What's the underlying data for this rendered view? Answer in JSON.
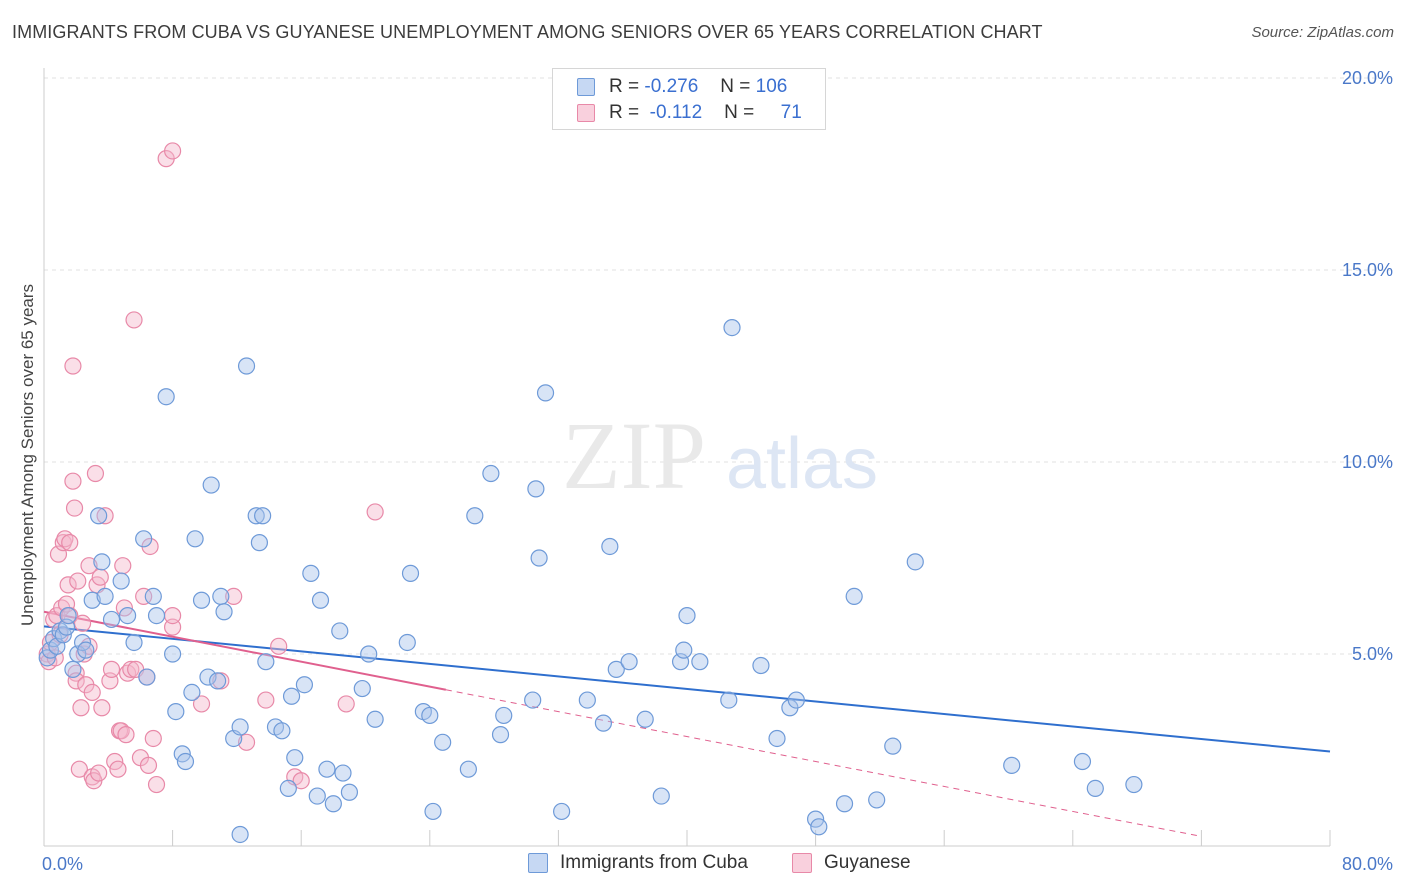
{
  "header": {
    "title": "IMMIGRANTS FROM CUBA VS GUYANESE UNEMPLOYMENT AMONG SENIORS OVER 65 YEARS CORRELATION CHART",
    "source": "Source: ZipAtlas.com"
  },
  "watermark": {
    "zip": "ZIP",
    "atlas": "atlas"
  },
  "legend": {
    "cuba": {
      "r_label": "R =",
      "r_value": "-0.276",
      "n_label": "N =",
      "n_value": "106"
    },
    "guyanese": {
      "r_label": "R =",
      "r_value": "-0.112",
      "n_label": "N =",
      "n_value": "71"
    }
  },
  "colors": {
    "cuba_fill": "#a8c4ec",
    "cuba_stroke": "#6e9ad8",
    "cuba_line": "#2f6fce",
    "guyanese_fill": "#f5b8cc",
    "guyanese_stroke": "#e889a8",
    "guyanese_line": "#e0608e",
    "grid": "#e2e2e2",
    "tick_text": "#4a78c8"
  },
  "chart_data": {
    "type": "scatter",
    "title": "IMMIGRANTS FROM CUBA VS GUYANESE UNEMPLOYMENT AMONG SENIORS OVER 65 YEARS CORRELATION CHART",
    "xlabel": "",
    "ylabel": "Unemployment Among Seniors over 65 years",
    "xlim": [
      0,
      80
    ],
    "ylim": [
      0,
      20
    ],
    "x_tick_labels": [
      "0.0%",
      "80.0%"
    ],
    "y_ticks": [
      5,
      10,
      15,
      20
    ],
    "y_tick_labels": [
      "5.0%",
      "10.0%",
      "15.0%",
      "20.0%"
    ],
    "legend_position": "top-center",
    "series": [
      {
        "name": "Immigrants from Cuba",
        "r": -0.276,
        "n": 106,
        "trend": {
          "x": [
            0,
            80
          ],
          "y": [
            5.72,
            2.46
          ],
          "solid_until": 80
        },
        "points": [
          [
            0.2,
            4.9
          ],
          [
            0.4,
            5.1
          ],
          [
            0.6,
            5.4
          ],
          [
            0.8,
            5.2
          ],
          [
            1.0,
            5.6
          ],
          [
            1.2,
            5.5
          ],
          [
            1.4,
            5.7
          ],
          [
            1.5,
            6.0
          ],
          [
            1.8,
            4.6
          ],
          [
            2.1,
            5.0
          ],
          [
            2.4,
            5.3
          ],
          [
            2.6,
            5.1
          ],
          [
            3.0,
            6.4
          ],
          [
            3.4,
            8.6
          ],
          [
            3.6,
            7.4
          ],
          [
            3.8,
            6.5
          ],
          [
            4.2,
            5.9
          ],
          [
            4.8,
            6.9
          ],
          [
            5.2,
            6.0
          ],
          [
            5.6,
            5.3
          ],
          [
            6.2,
            8.0
          ],
          [
            6.4,
            4.4
          ],
          [
            6.8,
            6.5
          ],
          [
            7.0,
            6.0
          ],
          [
            7.6,
            11.7
          ],
          [
            8.0,
            5.0
          ],
          [
            8.2,
            3.5
          ],
          [
            8.6,
            2.4
          ],
          [
            8.8,
            2.2
          ],
          [
            9.2,
            4.0
          ],
          [
            9.4,
            8.0
          ],
          [
            9.8,
            6.4
          ],
          [
            10.2,
            4.4
          ],
          [
            10.4,
            9.4
          ],
          [
            10.8,
            4.3
          ],
          [
            11.0,
            6.5
          ],
          [
            11.2,
            6.1
          ],
          [
            11.8,
            2.8
          ],
          [
            12.2,
            3.1
          ],
          [
            12.2,
            0.3
          ],
          [
            12.6,
            12.5
          ],
          [
            13.2,
            8.6
          ],
          [
            13.4,
            7.9
          ],
          [
            13.6,
            8.6
          ],
          [
            13.8,
            4.8
          ],
          [
            14.4,
            3.1
          ],
          [
            14.8,
            3.0
          ],
          [
            15.2,
            1.5
          ],
          [
            15.4,
            3.9
          ],
          [
            15.6,
            2.3
          ],
          [
            16.2,
            4.2
          ],
          [
            16.6,
            7.1
          ],
          [
            17.0,
            1.3
          ],
          [
            17.2,
            6.4
          ],
          [
            17.6,
            2.0
          ],
          [
            18.0,
            1.1
          ],
          [
            18.4,
            5.6
          ],
          [
            18.6,
            1.9
          ],
          [
            19.0,
            1.4
          ],
          [
            19.8,
            4.1
          ],
          [
            20.2,
            5.0
          ],
          [
            20.6,
            3.3
          ],
          [
            22.6,
            5.3
          ],
          [
            22.8,
            7.1
          ],
          [
            23.6,
            3.5
          ],
          [
            24.0,
            3.4
          ],
          [
            24.2,
            0.9
          ],
          [
            24.8,
            2.7
          ],
          [
            26.4,
            2.0
          ],
          [
            26.8,
            8.6
          ],
          [
            27.8,
            9.7
          ],
          [
            28.4,
            2.9
          ],
          [
            28.6,
            3.4
          ],
          [
            30.4,
            3.8
          ],
          [
            30.6,
            9.3
          ],
          [
            30.8,
            7.5
          ],
          [
            31.2,
            11.8
          ],
          [
            32.2,
            0.9
          ],
          [
            33.8,
            3.8
          ],
          [
            34.8,
            3.2
          ],
          [
            35.2,
            7.8
          ],
          [
            35.6,
            4.6
          ],
          [
            36.4,
            4.8
          ],
          [
            37.4,
            3.3
          ],
          [
            38.4,
            1.3
          ],
          [
            39.6,
            4.8
          ],
          [
            39.8,
            5.1
          ],
          [
            40.0,
            6.0
          ],
          [
            40.8,
            4.8
          ],
          [
            42.6,
            3.8
          ],
          [
            42.8,
            13.5
          ],
          [
            44.6,
            4.7
          ],
          [
            45.6,
            2.8
          ],
          [
            46.4,
            3.6
          ],
          [
            46.8,
            3.8
          ],
          [
            48.0,
            0.7
          ],
          [
            48.2,
            0.5
          ],
          [
            49.8,
            1.1
          ],
          [
            50.4,
            6.5
          ],
          [
            51.8,
            1.2
          ],
          [
            52.8,
            2.6
          ],
          [
            54.2,
            7.4
          ],
          [
            60.2,
            2.1
          ],
          [
            64.6,
            2.2
          ],
          [
            65.4,
            1.5
          ],
          [
            67.8,
            1.6
          ]
        ]
      },
      {
        "name": "Guyanese",
        "r": -0.112,
        "n": 71,
        "trend": {
          "x": [
            0,
            80
          ],
          "y": [
            6.1,
            -0.4
          ],
          "solid_until": 25
        },
        "points": [
          [
            0.2,
            5.0
          ],
          [
            0.3,
            4.8
          ],
          [
            0.4,
            5.3
          ],
          [
            0.6,
            5.9
          ],
          [
            0.7,
            4.9
          ],
          [
            0.8,
            6.0
          ],
          [
            0.9,
            7.6
          ],
          [
            1.0,
            5.5
          ],
          [
            1.1,
            6.2
          ],
          [
            1.2,
            7.9
          ],
          [
            1.3,
            8.0
          ],
          [
            1.4,
            6.3
          ],
          [
            1.5,
            6.8
          ],
          [
            1.6,
            6.0
          ],
          [
            1.6,
            7.9
          ],
          [
            1.8,
            9.5
          ],
          [
            1.8,
            12.5
          ],
          [
            1.9,
            8.8
          ],
          [
            2.0,
            4.5
          ],
          [
            2.0,
            4.3
          ],
          [
            2.1,
            6.9
          ],
          [
            2.2,
            2.0
          ],
          [
            2.3,
            3.6
          ],
          [
            2.4,
            5.8
          ],
          [
            2.5,
            5.0
          ],
          [
            2.6,
            4.2
          ],
          [
            2.8,
            5.2
          ],
          [
            2.8,
            7.3
          ],
          [
            3.0,
            4.0
          ],
          [
            3.0,
            1.8
          ],
          [
            3.1,
            1.7
          ],
          [
            3.2,
            9.7
          ],
          [
            3.3,
            6.8
          ],
          [
            3.4,
            1.9
          ],
          [
            3.5,
            7.0
          ],
          [
            3.6,
            3.6
          ],
          [
            3.8,
            8.6
          ],
          [
            4.1,
            4.3
          ],
          [
            4.2,
            4.6
          ],
          [
            4.4,
            2.2
          ],
          [
            4.6,
            2.0
          ],
          [
            4.7,
            3.0
          ],
          [
            4.8,
            3.0
          ],
          [
            4.9,
            7.3
          ],
          [
            5.0,
            6.2
          ],
          [
            5.1,
            2.9
          ],
          [
            5.2,
            4.5
          ],
          [
            5.4,
            4.6
          ],
          [
            5.6,
            13.7
          ],
          [
            5.7,
            4.6
          ],
          [
            6.0,
            2.3
          ],
          [
            6.2,
            6.5
          ],
          [
            6.4,
            4.4
          ],
          [
            6.5,
            2.1
          ],
          [
            6.6,
            7.8
          ],
          [
            6.8,
            2.8
          ],
          [
            7.0,
            1.6
          ],
          [
            7.6,
            17.9
          ],
          [
            8.0,
            18.1
          ],
          [
            8.0,
            5.7
          ],
          [
            8.0,
            6.0
          ],
          [
            9.8,
            3.7
          ],
          [
            11.0,
            4.3
          ],
          [
            11.8,
            6.5
          ],
          [
            12.6,
            2.7
          ],
          [
            13.8,
            3.8
          ],
          [
            14.6,
            5.2
          ],
          [
            15.6,
            1.8
          ],
          [
            16.0,
            1.7
          ],
          [
            18.8,
            3.7
          ],
          [
            20.6,
            8.7
          ]
        ]
      }
    ]
  },
  "bottom_legend": {
    "cuba_label": "Immigrants from Cuba",
    "guyanese_label": "Guyanese"
  }
}
